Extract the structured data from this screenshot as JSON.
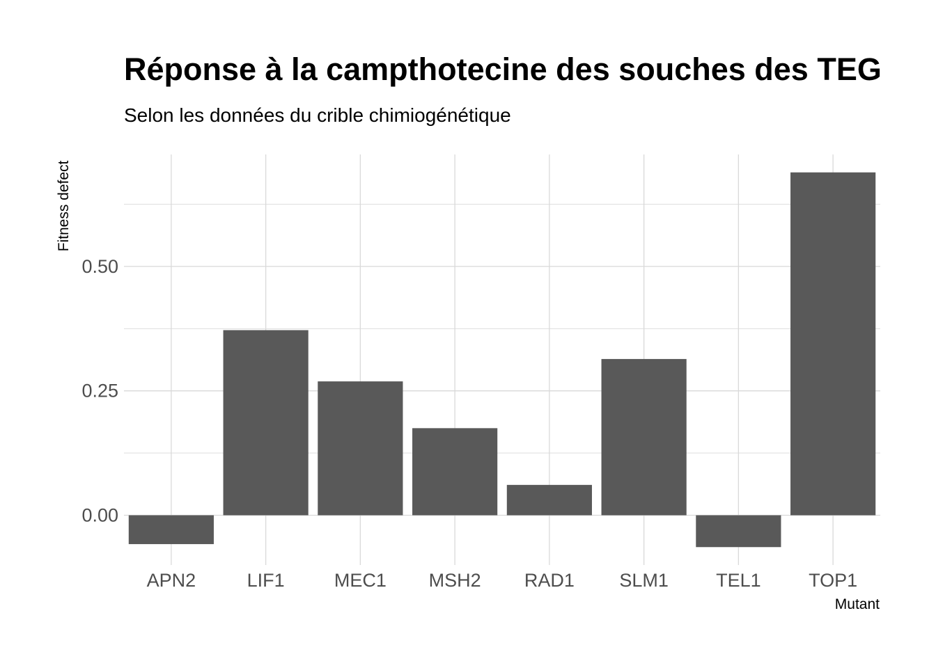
{
  "chart_data": {
    "type": "bar",
    "title": "Réponse à la campthotecine des souches des TEG",
    "subtitle": "Selon les données du crible chimiogénétique",
    "xlabel": "Mutant",
    "ylabel": "Fitness defect",
    "categories": [
      "APN2",
      "LIF1",
      "MEC1",
      "MSH2",
      "RAD1",
      "SLM1",
      "TEL1",
      "TOP1"
    ],
    "values": [
      -0.058,
      0.372,
      0.269,
      0.175,
      0.061,
      0.314,
      -0.064,
      0.689
    ],
    "ylim": [
      -0.1,
      0.725
    ],
    "yticks": [
      0.0,
      0.25,
      0.5
    ],
    "ytick_labels": [
      "0.00",
      "0.25",
      "0.50"
    ],
    "grid": true,
    "bar_color": "#595959",
    "grid_color": "#d9d9d9"
  }
}
